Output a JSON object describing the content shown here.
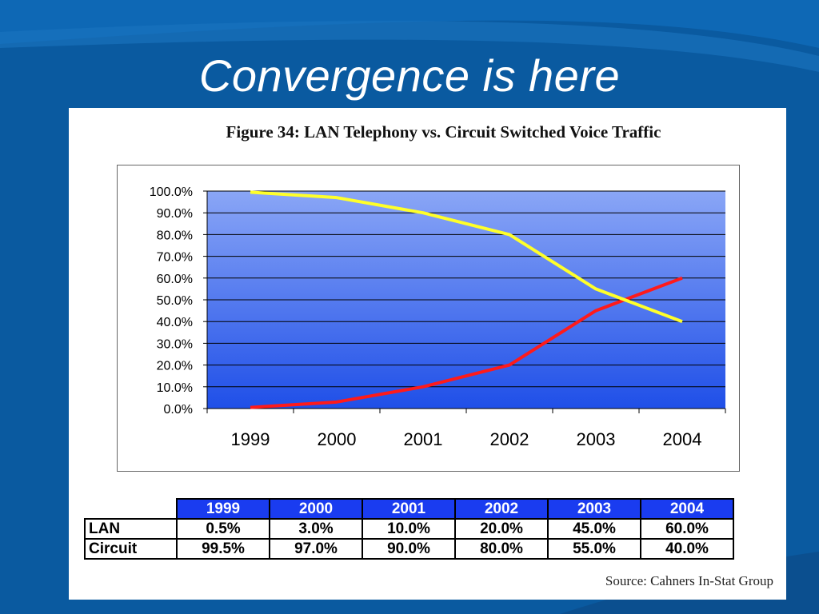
{
  "slide": {
    "title": "Convergence is here"
  },
  "colors": {
    "background": "#0a5aa0",
    "plot_gradient_top": "#8aa6f6",
    "plot_gradient_bottom": "#1f4fe8",
    "lan_line": "#ff1a1a",
    "circuit_line": "#ffff2a",
    "table_header": "#1a3cf0"
  },
  "chart_data": {
    "type": "line",
    "title": "Figure 34: LAN Telephony vs. Circuit Switched Voice Traffic",
    "categories": [
      "1999",
      "2000",
      "2001",
      "2002",
      "2003",
      "2004"
    ],
    "series": [
      {
        "name": "LAN",
        "values": [
          0.5,
          3.0,
          10.0,
          20.0,
          45.0,
          60.0
        ],
        "color": "#ff1a1a"
      },
      {
        "name": "Circuit",
        "values": [
          99.5,
          97.0,
          90.0,
          80.0,
          55.0,
          40.0
        ],
        "color": "#ffff2a"
      }
    ],
    "ylim": [
      0,
      100
    ],
    "yticks": [
      "0.0%",
      "10.0%",
      "20.0%",
      "30.0%",
      "40.0%",
      "50.0%",
      "60.0%",
      "70.0%",
      "80.0%",
      "90.0%",
      "100.0%"
    ],
    "grid": true,
    "xlabel": "",
    "ylabel": ""
  },
  "table": {
    "headers": [
      "1999",
      "2000",
      "2001",
      "2002",
      "2003",
      "2004"
    ],
    "rows": [
      {
        "label": "LAN",
        "cells": [
          "0.5%",
          "3.0%",
          "10.0%",
          "20.0%",
          "45.0%",
          "60.0%"
        ]
      },
      {
        "label": "Circuit",
        "cells": [
          "99.5%",
          "97.0%",
          "90.0%",
          "80.0%",
          "55.0%",
          "40.0%"
        ]
      }
    ]
  },
  "source": "Source: Cahners In-Stat Group"
}
